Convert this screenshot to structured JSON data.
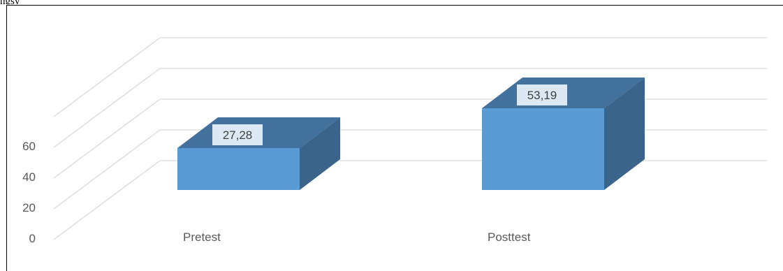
{
  "caption": "ngsy",
  "colors": {
    "front": "#5b9bd5",
    "top": "#41719c",
    "side": "#3a6489",
    "grid": "#d9d9d9",
    "label_bg": "#dce9f5"
  },
  "chart_data": {
    "type": "bar",
    "categories": [
      "Pretest",
      "Posttest"
    ],
    "values": [
      27.28,
      53.19
    ],
    "value_labels": [
      "27,28",
      "53,19"
    ],
    "ylim": [
      0,
      60
    ],
    "yticks": [
      "0",
      "20",
      "40",
      "60"
    ],
    "title": "",
    "xlabel": "",
    "ylabel": "",
    "grid": true
  }
}
